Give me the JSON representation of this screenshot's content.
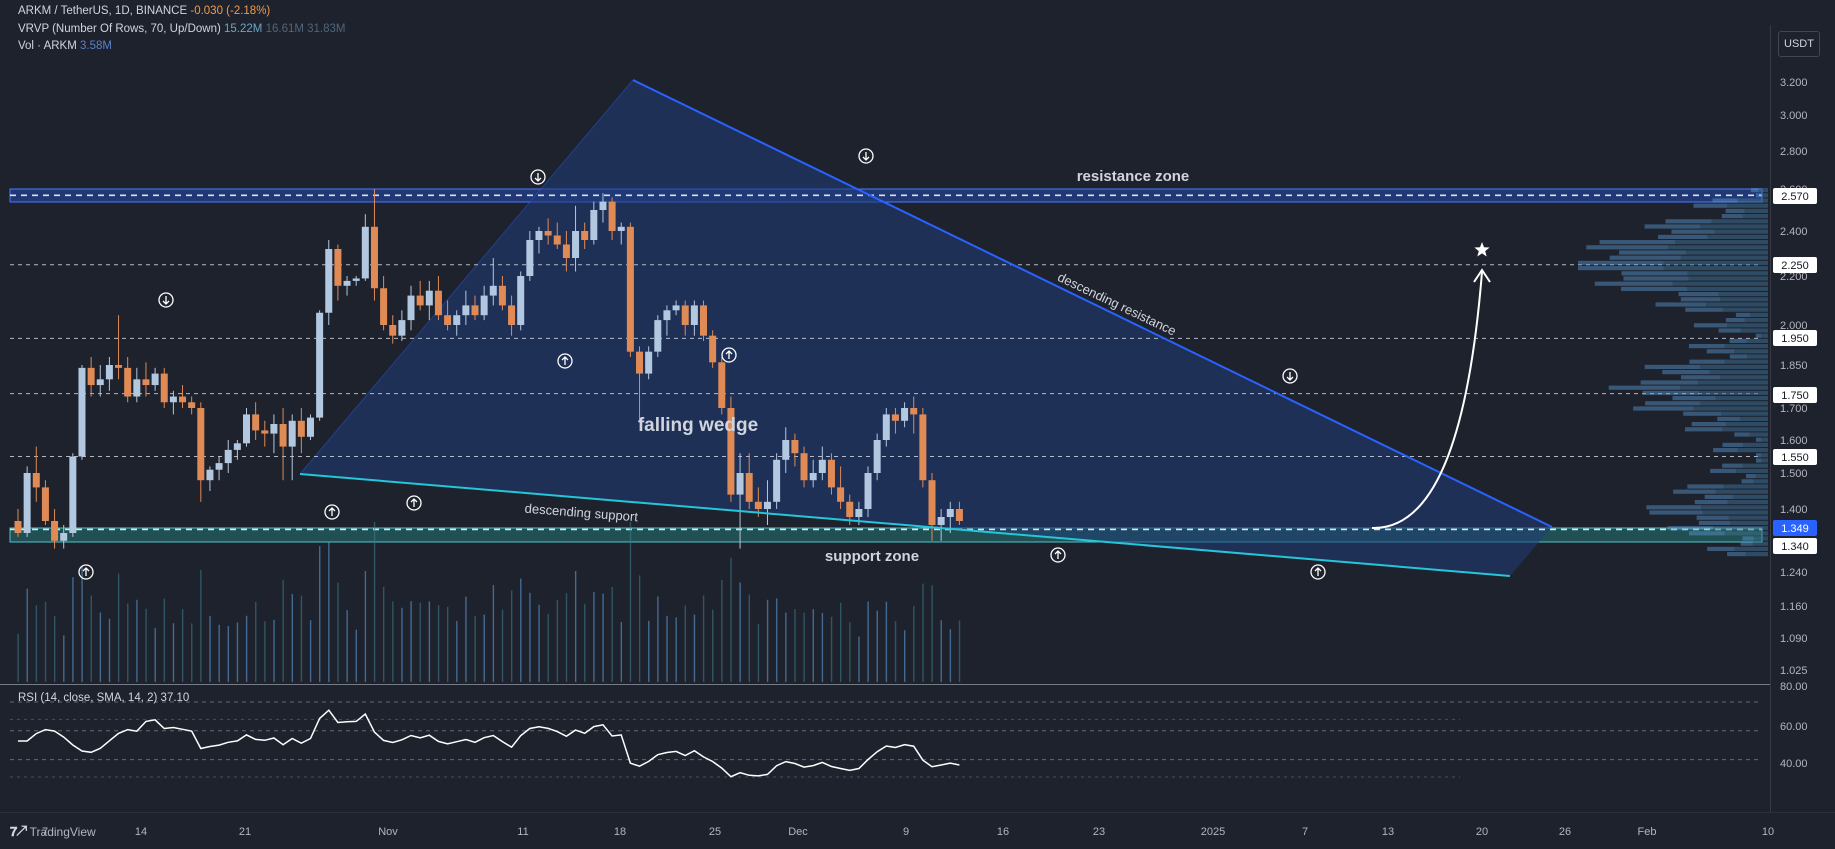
{
  "header": {
    "symbol_line": "ARKM / TetherUS, 1D, BINANCE",
    "change": "-0.030 (-2.18%)",
    "vrvp_label": "VRVP (Number Of Rows, 70, Up/Down)",
    "vrvp_v1": "15.22M",
    "vrvp_v2": "16.61M",
    "vrvp_v3": "31.83M",
    "vol_label": "Vol · ARKM",
    "vol_value": "3.58M"
  },
  "rsi_label": "RSI (14, close, SMA, 14, 2)",
  "rsi_value": "37.10",
  "unit": "USDT",
  "footer": {
    "brand": "TradingView"
  },
  "colors": {
    "up": "#b2c7e0",
    "down": "#e08a55",
    "wedge": "#1f3d78",
    "resistance": "#2962ff",
    "support": "#26c6da"
  },
  "chart_data": {
    "type": "candlestick",
    "y_ticks": [
      "3.200",
      "3.000",
      "2.800",
      "2.600",
      "2.400",
      "2.200",
      "2.000",
      "1.850",
      "1.700",
      "1.600",
      "1.500",
      "1.400",
      "1.240",
      "1.160",
      "1.090",
      "1.025"
    ],
    "price_labels": [
      "2.570",
      "2.250",
      "1.950",
      "1.750",
      "1.550",
      "1.349",
      "1.340"
    ],
    "x_ticks": [
      "7",
      "14",
      "21",
      "Nov",
      "11",
      "18",
      "25",
      "Dec",
      "9",
      "16",
      "23",
      "2025",
      "7",
      "13",
      "20",
      "26",
      "Feb",
      "10"
    ],
    "rsi_ticks": [
      "80.00",
      "60.00",
      "40.00"
    ],
    "annotations": {
      "resistance_zone": "resistance zone",
      "support_zone": "support zone",
      "descending_resistance": "descending resistance",
      "descending_support": "descending support",
      "falling_wedge": "falling wedge"
    },
    "candles": [
      {
        "o": 1.37,
        "h": 1.4,
        "l": 1.33,
        "c": 1.34
      },
      {
        "o": 1.34,
        "h": 1.52,
        "l": 1.33,
        "c": 1.5
      },
      {
        "o": 1.5,
        "h": 1.58,
        "l": 1.42,
        "c": 1.46
      },
      {
        "o": 1.46,
        "h": 1.48,
        "l": 1.36,
        "c": 1.37
      },
      {
        "o": 1.37,
        "h": 1.4,
        "l": 1.3,
        "c": 1.32
      },
      {
        "o": 1.32,
        "h": 1.36,
        "l": 1.3,
        "c": 1.34
      },
      {
        "o": 1.34,
        "h": 1.56,
        "l": 1.33,
        "c": 1.55
      },
      {
        "o": 1.55,
        "h": 1.85,
        "l": 1.54,
        "c": 1.84
      },
      {
        "o": 1.84,
        "h": 1.88,
        "l": 1.74,
        "c": 1.78
      },
      {
        "o": 1.78,
        "h": 1.85,
        "l": 1.74,
        "c": 1.8
      },
      {
        "o": 1.8,
        "h": 1.88,
        "l": 1.76,
        "c": 1.85
      },
      {
        "o": 1.85,
        "h": 2.04,
        "l": 1.8,
        "c": 1.84
      },
      {
        "o": 1.84,
        "h": 1.88,
        "l": 1.72,
        "c": 1.74
      },
      {
        "o": 1.74,
        "h": 1.84,
        "l": 1.72,
        "c": 1.8
      },
      {
        "o": 1.8,
        "h": 1.86,
        "l": 1.74,
        "c": 1.78
      },
      {
        "o": 1.78,
        "h": 1.84,
        "l": 1.76,
        "c": 1.82
      },
      {
        "o": 1.82,
        "h": 1.84,
        "l": 1.7,
        "c": 1.72
      },
      {
        "o": 1.72,
        "h": 1.76,
        "l": 1.68,
        "c": 1.74
      },
      {
        "o": 1.74,
        "h": 1.78,
        "l": 1.7,
        "c": 1.72
      },
      {
        "o": 1.72,
        "h": 1.74,
        "l": 1.68,
        "c": 1.7
      },
      {
        "o": 1.7,
        "h": 1.72,
        "l": 1.42,
        "c": 1.48
      },
      {
        "o": 1.48,
        "h": 1.52,
        "l": 1.45,
        "c": 1.51
      },
      {
        "o": 1.51,
        "h": 1.55,
        "l": 1.48,
        "c": 1.53
      },
      {
        "o": 1.53,
        "h": 1.6,
        "l": 1.5,
        "c": 1.57
      },
      {
        "o": 1.57,
        "h": 1.6,
        "l": 1.54,
        "c": 1.59
      },
      {
        "o": 1.59,
        "h": 1.7,
        "l": 1.58,
        "c": 1.68
      },
      {
        "o": 1.68,
        "h": 1.72,
        "l": 1.6,
        "c": 1.63
      },
      {
        "o": 1.63,
        "h": 1.66,
        "l": 1.58,
        "c": 1.62
      },
      {
        "o": 1.62,
        "h": 1.68,
        "l": 1.56,
        "c": 1.65
      },
      {
        "o": 1.65,
        "h": 1.7,
        "l": 1.48,
        "c": 1.58
      },
      {
        "o": 1.58,
        "h": 1.68,
        "l": 1.48,
        "c": 1.66
      },
      {
        "o": 1.66,
        "h": 1.7,
        "l": 1.56,
        "c": 1.61
      },
      {
        "o": 1.61,
        "h": 1.68,
        "l": 1.6,
        "c": 1.67
      },
      {
        "o": 1.67,
        "h": 2.06,
        "l": 1.66,
        "c": 2.05
      },
      {
        "o": 2.05,
        "h": 2.36,
        "l": 2.0,
        "c": 2.32
      },
      {
        "o": 2.32,
        "h": 2.34,
        "l": 2.1,
        "c": 2.16
      },
      {
        "o": 2.16,
        "h": 2.2,
        "l": 2.12,
        "c": 2.18
      },
      {
        "o": 2.18,
        "h": 2.2,
        "l": 2.16,
        "c": 2.19
      },
      {
        "o": 2.19,
        "h": 2.48,
        "l": 2.18,
        "c": 2.42
      },
      {
        "o": 2.42,
        "h": 2.6,
        "l": 2.1,
        "c": 2.15
      },
      {
        "o": 2.15,
        "h": 2.2,
        "l": 1.98,
        "c": 2.0
      },
      {
        "o": 2.0,
        "h": 2.04,
        "l": 1.93,
        "c": 1.96
      },
      {
        "o": 1.96,
        "h": 2.06,
        "l": 1.94,
        "c": 2.02
      },
      {
        "o": 2.02,
        "h": 2.16,
        "l": 1.98,
        "c": 2.12
      },
      {
        "o": 2.12,
        "h": 2.18,
        "l": 2.06,
        "c": 2.08
      },
      {
        "o": 2.08,
        "h": 2.18,
        "l": 2.02,
        "c": 2.14
      },
      {
        "o": 2.14,
        "h": 2.2,
        "l": 2.02,
        "c": 2.04
      },
      {
        "o": 2.04,
        "h": 2.1,
        "l": 1.98,
        "c": 2.0
      },
      {
        "o": 2.0,
        "h": 2.06,
        "l": 1.96,
        "c": 2.04
      },
      {
        "o": 2.04,
        "h": 2.14,
        "l": 2.0,
        "c": 2.08
      },
      {
        "o": 2.08,
        "h": 2.12,
        "l": 2.02,
        "c": 2.04
      },
      {
        "o": 2.04,
        "h": 2.16,
        "l": 2.02,
        "c": 2.12
      },
      {
        "o": 2.12,
        "h": 2.28,
        "l": 2.08,
        "c": 2.16
      },
      {
        "o": 2.16,
        "h": 2.2,
        "l": 2.06,
        "c": 2.08
      },
      {
        "o": 2.08,
        "h": 2.12,
        "l": 1.96,
        "c": 2.0
      },
      {
        "o": 2.0,
        "h": 2.22,
        "l": 1.98,
        "c": 2.2
      },
      {
        "o": 2.2,
        "h": 2.4,
        "l": 2.18,
        "c": 2.36
      },
      {
        "o": 2.36,
        "h": 2.42,
        "l": 2.3,
        "c": 2.4
      },
      {
        "o": 2.4,
        "h": 2.46,
        "l": 2.34,
        "c": 2.38
      },
      {
        "o": 2.38,
        "h": 2.44,
        "l": 2.32,
        "c": 2.34
      },
      {
        "o": 2.34,
        "h": 2.4,
        "l": 2.22,
        "c": 2.28
      },
      {
        "o": 2.28,
        "h": 2.52,
        "l": 2.22,
        "c": 2.4
      },
      {
        "o": 2.4,
        "h": 2.44,
        "l": 2.32,
        "c": 2.36
      },
      {
        "o": 2.36,
        "h": 2.54,
        "l": 2.34,
        "c": 2.5
      },
      {
        "o": 2.5,
        "h": 2.58,
        "l": 2.44,
        "c": 2.54
      },
      {
        "o": 2.54,
        "h": 2.56,
        "l": 2.36,
        "c": 2.4
      },
      {
        "o": 2.4,
        "h": 2.44,
        "l": 2.34,
        "c": 2.42
      },
      {
        "o": 2.42,
        "h": 2.44,
        "l": 1.88,
        "c": 1.9
      },
      {
        "o": 1.9,
        "h": 1.92,
        "l": 1.66,
        "c": 1.82
      },
      {
        "o": 1.82,
        "h": 1.92,
        "l": 1.8,
        "c": 1.9
      },
      {
        "o": 1.9,
        "h": 2.04,
        "l": 1.88,
        "c": 2.02
      },
      {
        "o": 2.02,
        "h": 2.08,
        "l": 1.96,
        "c": 2.06
      },
      {
        "o": 2.06,
        "h": 2.1,
        "l": 2.04,
        "c": 2.08
      },
      {
        "o": 2.08,
        "h": 2.1,
        "l": 1.96,
        "c": 2.0
      },
      {
        "o": 2.0,
        "h": 2.1,
        "l": 1.96,
        "c": 2.08
      },
      {
        "o": 2.08,
        "h": 2.1,
        "l": 1.94,
        "c": 1.96
      },
      {
        "o": 1.96,
        "h": 1.98,
        "l": 1.84,
        "c": 1.86
      },
      {
        "o": 1.86,
        "h": 1.88,
        "l": 1.68,
        "c": 1.7
      },
      {
        "o": 1.7,
        "h": 1.74,
        "l": 1.42,
        "c": 1.44
      },
      {
        "o": 1.44,
        "h": 1.56,
        "l": 1.3,
        "c": 1.5
      },
      {
        "o": 1.5,
        "h": 1.56,
        "l": 1.4,
        "c": 1.42
      },
      {
        "o": 1.42,
        "h": 1.46,
        "l": 1.38,
        "c": 1.4
      },
      {
        "o": 1.4,
        "h": 1.48,
        "l": 1.36,
        "c": 1.42
      },
      {
        "o": 1.42,
        "h": 1.56,
        "l": 1.4,
        "c": 1.54
      },
      {
        "o": 1.54,
        "h": 1.64,
        "l": 1.5,
        "c": 1.6
      },
      {
        "o": 1.6,
        "h": 1.62,
        "l": 1.52,
        "c": 1.56
      },
      {
        "o": 1.56,
        "h": 1.58,
        "l": 1.46,
        "c": 1.48
      },
      {
        "o": 1.48,
        "h": 1.54,
        "l": 1.46,
        "c": 1.5
      },
      {
        "o": 1.5,
        "h": 1.58,
        "l": 1.48,
        "c": 1.54
      },
      {
        "o": 1.54,
        "h": 1.56,
        "l": 1.44,
        "c": 1.46
      },
      {
        "o": 1.46,
        "h": 1.52,
        "l": 1.4,
        "c": 1.42
      },
      {
        "o": 1.42,
        "h": 1.44,
        "l": 1.36,
        "c": 1.38
      },
      {
        "o": 1.38,
        "h": 1.42,
        "l": 1.36,
        "c": 1.4
      },
      {
        "o": 1.4,
        "h": 1.52,
        "l": 1.38,
        "c": 1.5
      },
      {
        "o": 1.5,
        "h": 1.62,
        "l": 1.48,
        "c": 1.6
      },
      {
        "o": 1.6,
        "h": 1.7,
        "l": 1.58,
        "c": 1.68
      },
      {
        "o": 1.68,
        "h": 1.7,
        "l": 1.62,
        "c": 1.66
      },
      {
        "o": 1.66,
        "h": 1.72,
        "l": 1.64,
        "c": 1.7
      },
      {
        "o": 1.7,
        "h": 1.74,
        "l": 1.62,
        "c": 1.68
      },
      {
        "o": 1.68,
        "h": 1.7,
        "l": 1.46,
        "c": 1.48
      },
      {
        "o": 1.48,
        "h": 1.5,
        "l": 1.32,
        "c": 1.36
      },
      {
        "o": 1.36,
        "h": 1.4,
        "l": 1.32,
        "c": 1.38
      },
      {
        "o": 1.38,
        "h": 1.42,
        "l": 1.34,
        "c": 1.4
      },
      {
        "o": 1.4,
        "h": 1.42,
        "l": 1.36,
        "c": 1.37
      }
    ]
  }
}
